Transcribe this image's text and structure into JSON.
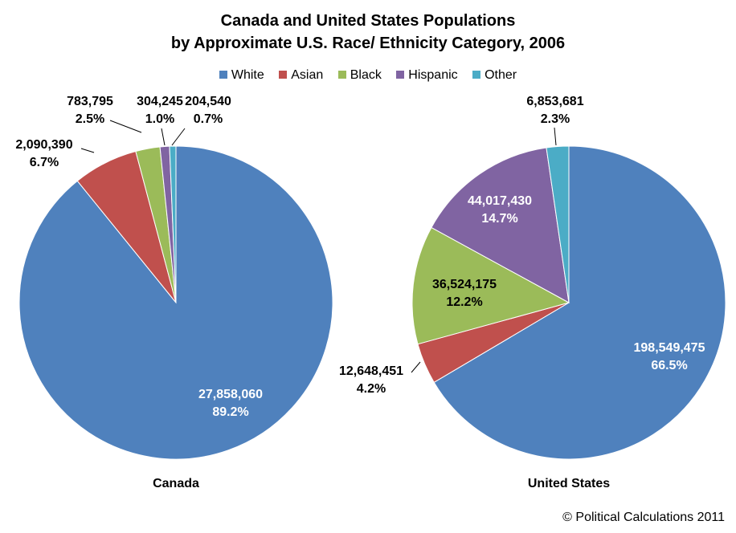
{
  "title_line1": "Canada and United States Populations",
  "title_line2": "by Approximate U.S. Race/ Ethnicity Category, 2006",
  "legend": [
    {
      "name": "White",
      "color": "#4F81BD"
    },
    {
      "name": "Asian",
      "color": "#C0504D"
    },
    {
      "name": "Black",
      "color": "#9BBB59"
    },
    {
      "name": "Hispanic",
      "color": "#8064A2"
    },
    {
      "name": "Other",
      "color": "#4BACC6"
    }
  ],
  "chart_data": [
    {
      "type": "pie",
      "title": "Canada",
      "slices": [
        {
          "category": "White",
          "value": 27858060,
          "label": "27,858,060",
          "pct": "89.2%"
        },
        {
          "category": "Asian",
          "value": 2090390,
          "label": "2,090,390",
          "pct": "6.7%"
        },
        {
          "category": "Black",
          "value": 783795,
          "label": "783,795",
          "pct": "2.5%"
        },
        {
          "category": "Hispanic",
          "value": 304245,
          "label": "304,245",
          "pct": "1.0%"
        },
        {
          "category": "Other",
          "value": 204540,
          "label": "204,540",
          "pct": "0.7%"
        }
      ]
    },
    {
      "type": "pie",
      "title": "United States",
      "slices": [
        {
          "category": "White",
          "value": 198549475,
          "label": "198,549,475",
          "pct": "66.5%"
        },
        {
          "category": "Asian",
          "value": 12648451,
          "label": "12,648,451",
          "pct": "4.2%"
        },
        {
          "category": "Black",
          "value": 36524175,
          "label": "36,524,175",
          "pct": "12.2%"
        },
        {
          "category": "Hispanic",
          "value": 44017430,
          "label": "44,017,430",
          "pct": "14.7%"
        },
        {
          "category": "Other",
          "value": 6853681,
          "label": "6,853,681",
          "pct": "2.3%"
        }
      ]
    }
  ],
  "footer": "© Political Calculations 2011"
}
